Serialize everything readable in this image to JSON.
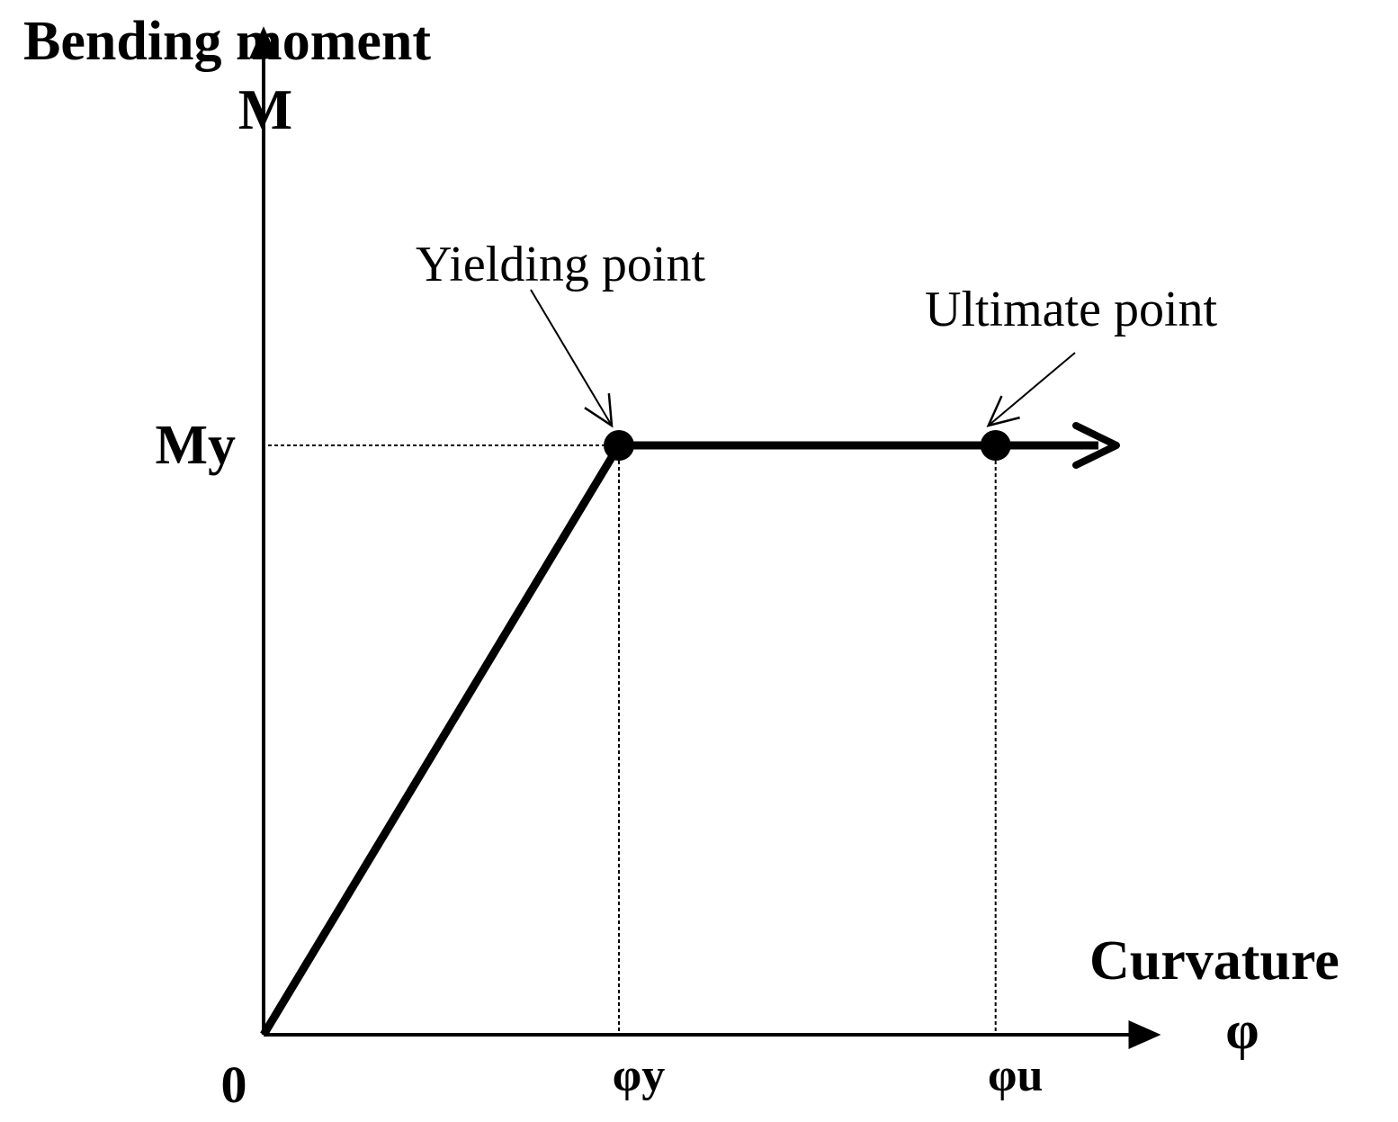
{
  "chart_data": {
    "type": "line",
    "title": "",
    "ylabel": "Bending moment",
    "ylabel_symbol": "M",
    "xlabel": "Curvature",
    "xlabel_symbol": "φ",
    "origin_label": "0",
    "x_ticks": [
      {
        "label": "φy",
        "value": 1
      },
      {
        "label": "φu",
        "value": 2.06
      }
    ],
    "y_ticks": [
      {
        "label": "My",
        "value": 1
      }
    ],
    "xlim": [
      0,
      2.5
    ],
    "ylim": [
      0,
      1.65
    ],
    "series": [
      {
        "points": [
          {
            "x": 0,
            "y": 0
          },
          {
            "x": 1,
            "y": 1
          },
          {
            "x": 2.06,
            "y": 1
          },
          {
            "x": 2.4,
            "y": 1
          }
        ]
      }
    ],
    "markers": [
      {
        "label": "Yielding point",
        "x": 1,
        "y": 1
      },
      {
        "label": "Ultimate  point",
        "x": 2.06,
        "y": 1
      }
    ],
    "grid": false,
    "legend": "none"
  }
}
